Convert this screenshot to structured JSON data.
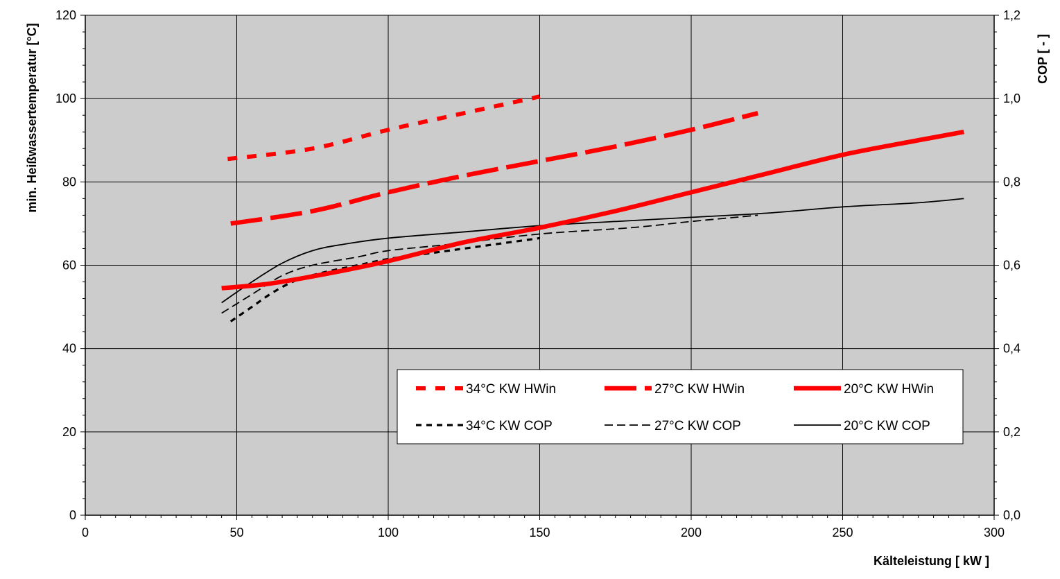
{
  "chart_data": {
    "type": "line",
    "xlabel": "Kälteleistung [ kW ]",
    "ylabel_left": "min. Heißwassertemperatur [°C]",
    "ylabel_right": "COP [ - ]",
    "xlim": [
      0,
      300
    ],
    "ylim_left": [
      0,
      120
    ],
    "ylim_right": [
      0.0,
      1.2
    ],
    "x_ticks": [
      "0",
      "50",
      "100",
      "150",
      "200",
      "250",
      "300"
    ],
    "y_left_ticks": [
      "0",
      "20",
      "40",
      "60",
      "80",
      "100",
      "120"
    ],
    "y_right_ticks": [
      "0,0",
      "0,2",
      "0,4",
      "0,6",
      "0,8",
      "1,0",
      "1,2"
    ],
    "grid": true,
    "plot_background": "#cccccc",
    "legend_position": "lower-right",
    "series": [
      {
        "name": "34°C KW HWin",
        "axis": "left",
        "color": "#ff0000",
        "style": "dashed-thick",
        "points": [
          [
            47,
            85.5
          ],
          [
            75,
            88
          ],
          [
            100,
            92.5
          ],
          [
            125,
            96.5
          ],
          [
            150,
            100.5
          ]
        ]
      },
      {
        "name": "27°C KW HWin",
        "axis": "left",
        "color": "#ff0000",
        "style": "longdash-thick",
        "points": [
          [
            48,
            70
          ],
          [
            75,
            73
          ],
          [
            100,
            77.5
          ],
          [
            125,
            81.5
          ],
          [
            150,
            85
          ],
          [
            175,
            88.5
          ],
          [
            200,
            92.5
          ],
          [
            222,
            96.5
          ]
        ]
      },
      {
        "name": "20°C KW HWin",
        "axis": "left",
        "color": "#ff0000",
        "style": "solid-thick",
        "points": [
          [
            45,
            54.5
          ],
          [
            60,
            55.5
          ],
          [
            80,
            58
          ],
          [
            100,
            61
          ],
          [
            125,
            65.5
          ],
          [
            150,
            69
          ],
          [
            175,
            73
          ],
          [
            200,
            77.5
          ],
          [
            225,
            82
          ],
          [
            250,
            86.5
          ],
          [
            275,
            90
          ],
          [
            290,
            92
          ]
        ]
      },
      {
        "name": "34°C KW COP",
        "axis": "right",
        "color": "#000000",
        "style": "dotted",
        "points": [
          [
            48,
            0.465
          ],
          [
            55,
            0.5
          ],
          [
            62,
            0.535
          ],
          [
            70,
            0.565
          ],
          [
            80,
            0.585
          ],
          [
            90,
            0.6
          ],
          [
            100,
            0.615
          ],
          [
            115,
            0.63
          ],
          [
            130,
            0.645
          ],
          [
            150,
            0.665
          ]
        ]
      },
      {
        "name": "27°C KW COP",
        "axis": "right",
        "color": "#000000",
        "style": "dashed",
        "points": [
          [
            45,
            0.485
          ],
          [
            55,
            0.53
          ],
          [
            65,
            0.575
          ],
          [
            75,
            0.6
          ],
          [
            90,
            0.62
          ],
          [
            100,
            0.635
          ],
          [
            120,
            0.65
          ],
          [
            150,
            0.675
          ],
          [
            180,
            0.69
          ],
          [
            200,
            0.705
          ],
          [
            222,
            0.72
          ]
        ]
      },
      {
        "name": "20°C KW COP",
        "axis": "right",
        "color": "#000000",
        "style": "solid",
        "points": [
          [
            45,
            0.51
          ],
          [
            55,
            0.56
          ],
          [
            65,
            0.605
          ],
          [
            75,
            0.635
          ],
          [
            85,
            0.65
          ],
          [
            100,
            0.665
          ],
          [
            125,
            0.68
          ],
          [
            150,
            0.695
          ],
          [
            175,
            0.705
          ],
          [
            200,
            0.715
          ],
          [
            225,
            0.725
          ],
          [
            250,
            0.74
          ],
          [
            275,
            0.75
          ],
          [
            290,
            0.76
          ]
        ]
      }
    ]
  }
}
